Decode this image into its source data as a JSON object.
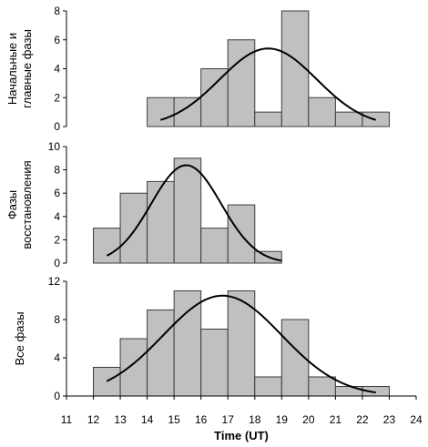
{
  "chart_data": [
    {
      "type": "bar",
      "ylabel_lines": [
        "Начальные и",
        "главные фазы"
      ],
      "ylim": [
        0,
        8
      ],
      "yticks": [
        0,
        2,
        4,
        6,
        8
      ],
      "bars": [
        {
          "x0": 14,
          "x1": 15,
          "value": 2
        },
        {
          "x0": 15,
          "x1": 16,
          "value": 2
        },
        {
          "x0": 16,
          "x1": 17,
          "value": 4
        },
        {
          "x0": 17,
          "x1": 18,
          "value": 6
        },
        {
          "x0": 18,
          "x1": 19,
          "value": 1
        },
        {
          "x0": 19,
          "x1": 20,
          "value": 8
        },
        {
          "x0": 20,
          "x1": 21,
          "value": 2
        },
        {
          "x0": 21,
          "x1": 22,
          "value": 1
        },
        {
          "x0": 22,
          "x1": 23,
          "value": 1
        }
      ],
      "fit_curve": {
        "type": "gaussian",
        "x_start": 14.5,
        "x_end": 22.5,
        "peak_x": 18.5,
        "peak_y": 5.4,
        "sigma": 1.8
      }
    },
    {
      "type": "bar",
      "ylabel_lines": [
        "Фазы",
        "восстановления"
      ],
      "ylim": [
        0,
        10
      ],
      "yticks": [
        0,
        2,
        4,
        6,
        8,
        10
      ],
      "bars": [
        {
          "x0": 12,
          "x1": 13,
          "value": 3
        },
        {
          "x0": 13,
          "x1": 14,
          "value": 6
        },
        {
          "x0": 14,
          "x1": 15,
          "value": 7
        },
        {
          "x0": 15,
          "x1": 16,
          "value": 9
        },
        {
          "x0": 16,
          "x1": 17,
          "value": 3
        },
        {
          "x0": 17,
          "x1": 18,
          "value": 5
        },
        {
          "x0": 18,
          "x1": 19,
          "value": 1
        }
      ],
      "fit_curve": {
        "type": "gaussian",
        "x_start": 12.5,
        "x_end": 19.0,
        "peak_x": 15.45,
        "peak_y": 8.4,
        "sigma": 1.3
      }
    },
    {
      "type": "bar",
      "ylabel_lines": [
        "Все фазы"
      ],
      "ylim": [
        0,
        12
      ],
      "yticks": [
        0,
        4,
        8,
        12
      ],
      "bars": [
        {
          "x0": 12,
          "x1": 13,
          "value": 3
        },
        {
          "x0": 13,
          "x1": 14,
          "value": 6
        },
        {
          "x0": 14,
          "x1": 15,
          "value": 9
        },
        {
          "x0": 15,
          "x1": 16,
          "value": 11
        },
        {
          "x0": 16,
          "x1": 17,
          "value": 7
        },
        {
          "x0": 17,
          "x1": 18,
          "value": 11
        },
        {
          "x0": 18,
          "x1": 19,
          "value": 2
        },
        {
          "x0": 19,
          "x1": 20,
          "value": 8
        },
        {
          "x0": 20,
          "x1": 21,
          "value": 2
        },
        {
          "x0": 21,
          "x1": 22,
          "value": 1
        },
        {
          "x0": 22,
          "x1": 23,
          "value": 1
        }
      ],
      "fit_curve": {
        "type": "gaussian",
        "x_start": 12.5,
        "x_end": 22.5,
        "peak_x": 16.8,
        "peak_y": 10.5,
        "sigma": 2.2
      }
    }
  ],
  "x_axis": {
    "label": "Time (UT)",
    "xlim": [
      11,
      24
    ],
    "ticks": [
      11,
      12,
      13,
      14,
      15,
      16,
      17,
      18,
      19,
      20,
      21,
      22,
      23,
      24
    ]
  },
  "colors": {
    "bar_fill": "#c0c0c0",
    "bar_stroke": "#3c3c3c",
    "curve": "#000000"
  }
}
